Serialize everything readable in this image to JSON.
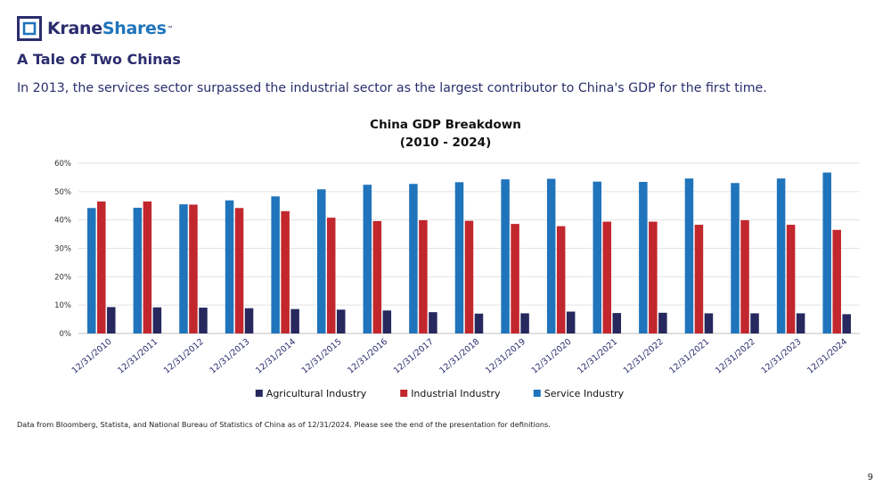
{
  "brand": {
    "name_part1": "Krane",
    "name_part2": "Shares",
    "trademark": "™",
    "colors": {
      "navy": "#2b2d6e",
      "blue": "#1f74bb"
    }
  },
  "header": {
    "title": "A Tale of Two Chinas",
    "subtitle": "In 2013, the services sector surpassed the industrial sector as the largest contributor to China's GDP for the first time."
  },
  "chart_data": {
    "type": "bar",
    "title": "China GDP Breakdown",
    "subtitle": "(2010 - 2024)",
    "xlabel": "",
    "ylabel": "",
    "categories": [
      "12/31/2010",
      "12/31/2011",
      "12/31/2012",
      "12/31/2013",
      "12/31/2014",
      "12/31/2015",
      "12/31/2016",
      "12/31/2017",
      "12/31/2018",
      "12/31/2019",
      "12/31/2020",
      "12/31/2021",
      "12/31/2022",
      "12/31/2021",
      "12/31/2022",
      "12/31/2023",
      "12/31/2024"
    ],
    "series": [
      {
        "name": "Service Industry",
        "color": "#1f74bb",
        "values": [
          44.2,
          44.3,
          45.5,
          46.9,
          48.3,
          50.8,
          52.4,
          52.7,
          53.3,
          54.3,
          54.5,
          53.5,
          53.4,
          54.6,
          53.0,
          54.6,
          56.7
        ]
      },
      {
        "name": "Industrial Industry",
        "color": "#c1272d",
        "values": [
          46.5,
          46.5,
          45.4,
          44.2,
          43.1,
          40.8,
          39.6,
          39.9,
          39.7,
          38.6,
          37.8,
          39.4,
          39.4,
          38.3,
          39.9,
          38.3,
          36.5
        ]
      },
      {
        "name": "Agricultural Industry",
        "color": "#26285e",
        "values": [
          9.3,
          9.2,
          9.1,
          8.9,
          8.6,
          8.4,
          8.1,
          7.5,
          7.0,
          7.1,
          7.7,
          7.2,
          7.3,
          7.1,
          7.1,
          7.1,
          6.8
        ]
      }
    ],
    "bar_order": [
      "Service Industry",
      "Industrial Industry",
      "Agricultural Industry"
    ],
    "legend_order": [
      "Agricultural Industry",
      "Industrial Industry",
      "Service Industry"
    ],
    "ylim": [
      0,
      60
    ],
    "yticks": [
      "0%",
      "10%",
      "20%",
      "30%",
      "40%",
      "50%",
      "60%"
    ],
    "grid": true,
    "legend_position": "bottom"
  },
  "footnote": "Data from Bloomberg, Statista, and National Bureau of Statistics of China as of 12/31/2024. Please see the end of the presentation for definitions.",
  "page_number": "9"
}
